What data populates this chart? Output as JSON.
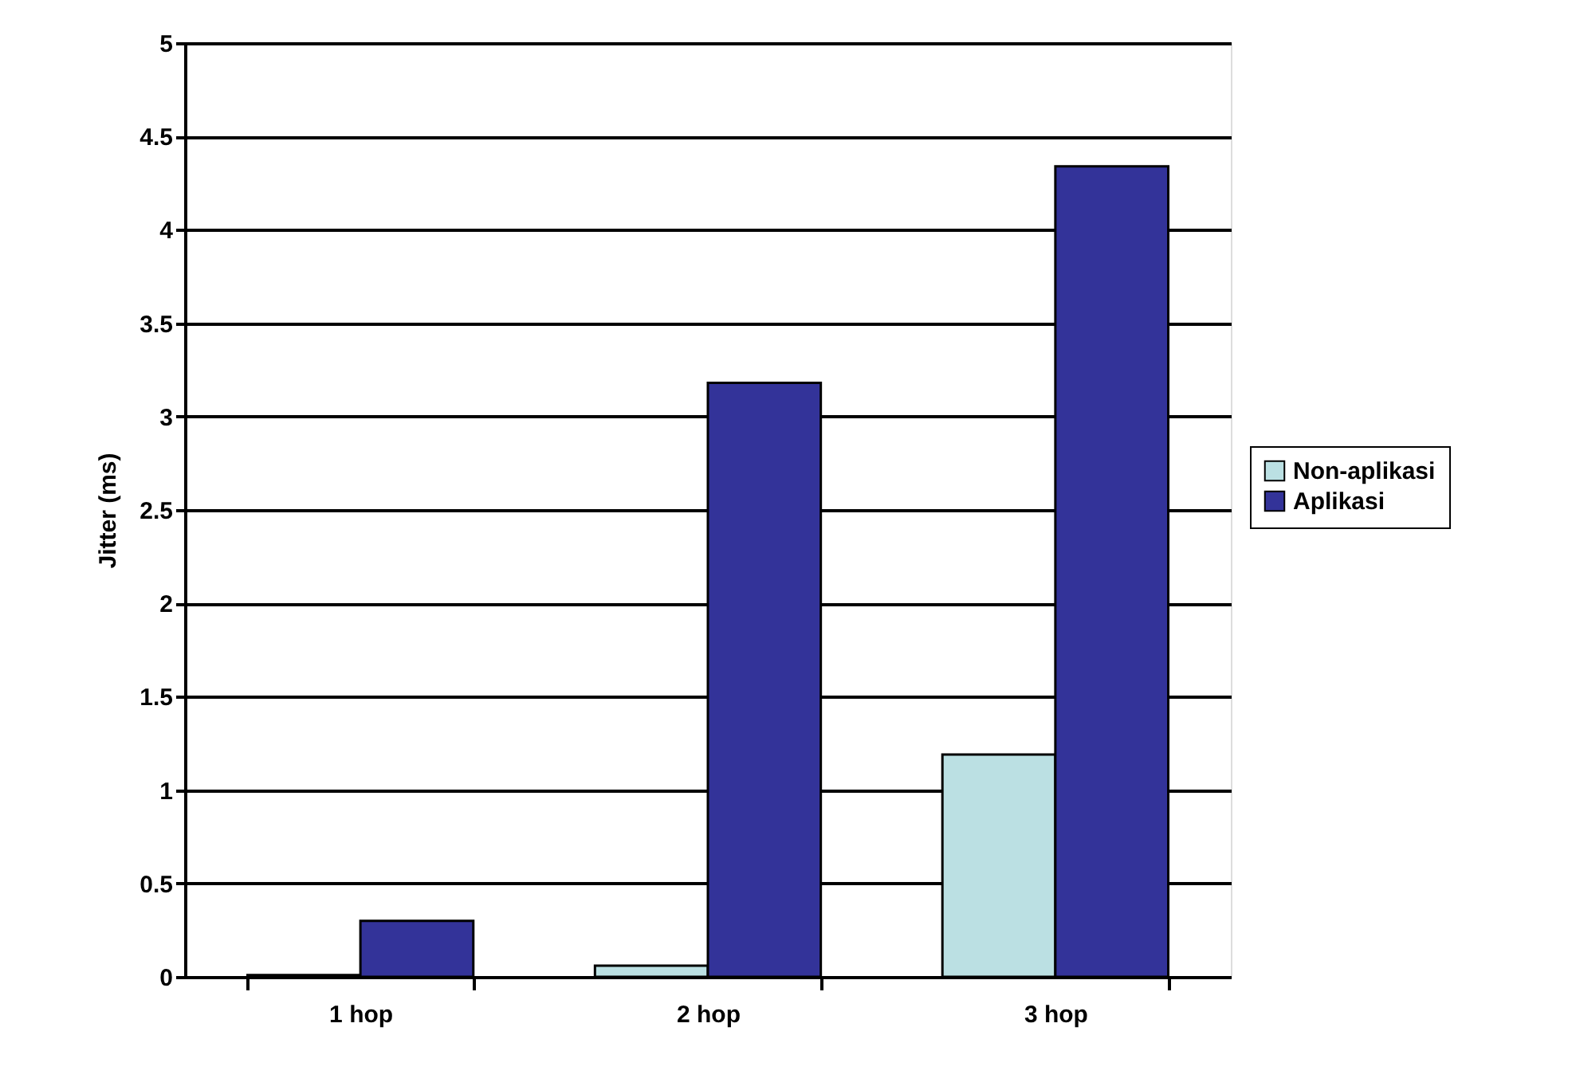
{
  "chart_data": {
    "type": "bar",
    "ylabel": "Jitter (ms)",
    "categories": [
      "1 hop",
      "2 hop",
      "3 hop"
    ],
    "series": [
      {
        "name": "Non-aplikasi",
        "color": "#bbe0e3",
        "values": [
          0.01,
          0.06,
          1.19
        ]
      },
      {
        "name": "Aplikasi",
        "color": "#333399",
        "values": [
          0.3,
          3.18,
          4.34
        ]
      }
    ],
    "ylim": [
      0,
      5
    ],
    "yticks": [
      0,
      0.5,
      1,
      1.5,
      2,
      2.5,
      3,
      3.5,
      4,
      4.5,
      5
    ],
    "grid": "y",
    "legend": "right"
  }
}
